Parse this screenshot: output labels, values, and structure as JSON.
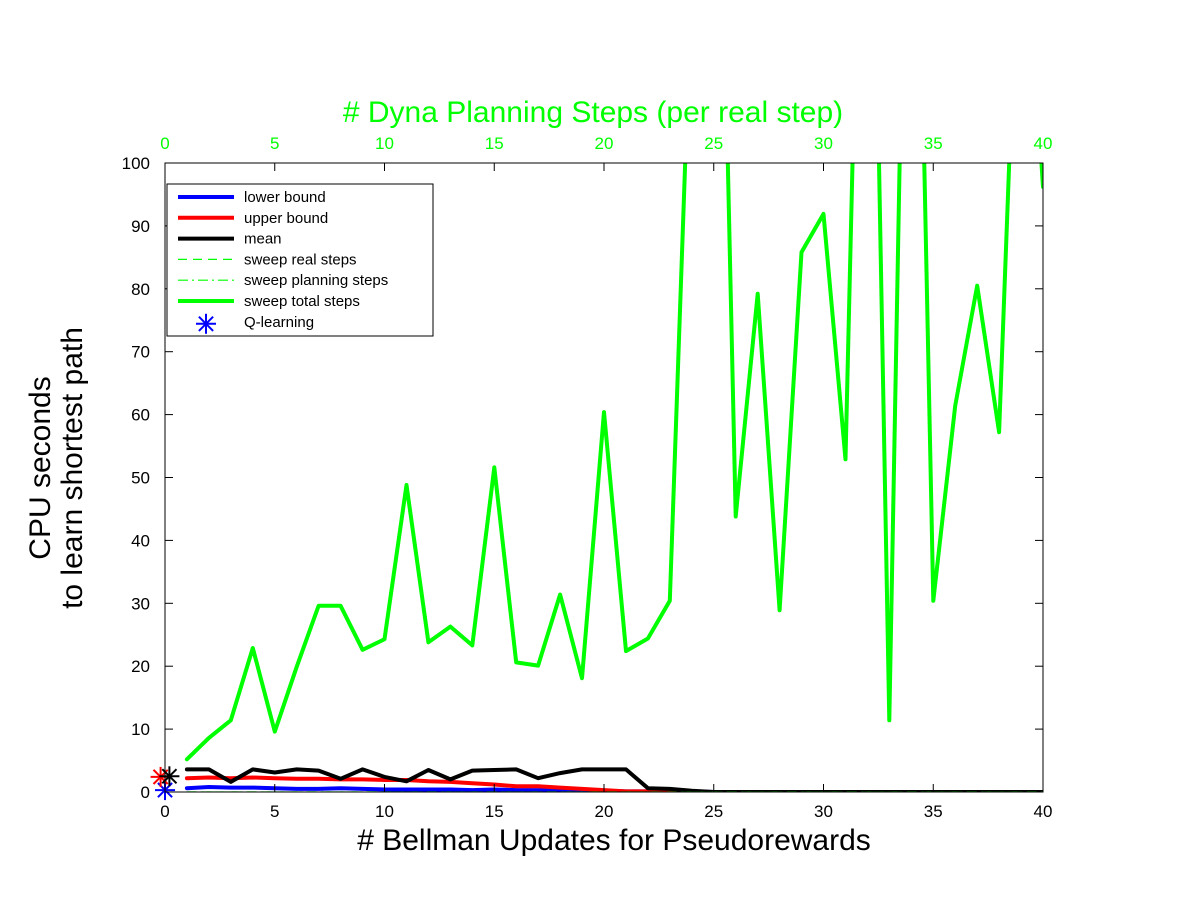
{
  "chart_data": {
    "type": "line",
    "title": "",
    "xlabel": "# Bellman Updates for Pseudorewards",
    "ylabel_lines": [
      "CPU seconds",
      "to learn shortest path"
    ],
    "top_xlabel": "# Dyna Planning Steps (per real step)",
    "xlim": [
      0,
      40
    ],
    "ylim": [
      0,
      100
    ],
    "xticks": [
      0,
      5,
      10,
      15,
      20,
      25,
      30,
      35,
      40
    ],
    "yticks": [
      0,
      10,
      20,
      30,
      40,
      50,
      60,
      70,
      80,
      90,
      100
    ],
    "top_xticks": [
      0,
      5,
      10,
      15,
      20,
      25,
      30,
      35,
      40
    ],
    "grid": false,
    "legend_position": "top-left",
    "colors": {
      "blue": "#0000ff",
      "red": "#ff0000",
      "black": "#000000",
      "green": "#00ff00",
      "top_axis": "#00ff00"
    },
    "series": [
      {
        "name": "lower bound",
        "color": "#0000ff",
        "style": "solid",
        "x": [
          1,
          2,
          3,
          4,
          5,
          6,
          7,
          8,
          9,
          10,
          11,
          12,
          13,
          14,
          15,
          16,
          17,
          18,
          19,
          20,
          21,
          22,
          23,
          24,
          25,
          26,
          27,
          28,
          29,
          30,
          31,
          32,
          33,
          34,
          35,
          36,
          37,
          38,
          39,
          40
        ],
        "y": [
          0.6,
          0.8,
          0.7,
          0.7,
          0.6,
          0.5,
          0.5,
          0.6,
          0.5,
          0.4,
          0.4,
          0.4,
          0.4,
          0.3,
          0.4,
          0.3,
          0.3,
          0.3,
          0.2,
          0.2,
          0.1,
          0.1,
          0.1,
          0.1,
          0,
          0,
          0,
          0,
          0,
          0,
          0,
          0,
          0,
          0,
          0,
          0,
          0,
          0,
          0,
          0
        ]
      },
      {
        "name": "upper bound",
        "color": "#ff0000",
        "style": "solid",
        "x": [
          1,
          2,
          3,
          4,
          5,
          6,
          7,
          8,
          9,
          10,
          11,
          12,
          13,
          14,
          15,
          16,
          17,
          18,
          19,
          20,
          21,
          22,
          23,
          24,
          25,
          26,
          27,
          28,
          29,
          30,
          31,
          32,
          33,
          34,
          35,
          36,
          37,
          38,
          39,
          40
        ],
        "y": [
          2.2,
          2.3,
          2.2,
          2.3,
          2.2,
          2.1,
          2.1,
          2.0,
          2.0,
          1.9,
          1.9,
          1.7,
          1.6,
          1.4,
          1.2,
          0.9,
          0.9,
          0.7,
          0.5,
          0.3,
          0.1,
          0.1,
          0.1,
          0,
          0,
          0,
          0,
          0,
          0,
          0,
          0,
          0,
          0,
          0,
          0,
          0,
          0,
          0,
          0,
          0
        ]
      },
      {
        "name": "mean",
        "color": "#000000",
        "style": "solid",
        "x": [
          1,
          2,
          3,
          4,
          5,
          6,
          7,
          8,
          9,
          10,
          11,
          12,
          13,
          14,
          15,
          16,
          17,
          18,
          19,
          20,
          21,
          22,
          23,
          24,
          25,
          26,
          27,
          28,
          29,
          30,
          31,
          32,
          33,
          34,
          35,
          36,
          37,
          38,
          39,
          40
        ],
        "y": [
          3.6,
          3.6,
          1.6,
          3.6,
          3.1,
          3.6,
          3.4,
          2.1,
          3.6,
          2.4,
          1.7,
          3.5,
          2.0,
          3.4,
          3.5,
          3.6,
          2.2,
          3.0,
          3.6,
          3.6,
          3.6,
          0.6,
          0.5,
          0.2,
          0,
          0,
          0,
          0,
          0,
          0,
          0,
          0,
          0,
          0,
          0,
          0,
          0,
          0,
          0,
          0
        ]
      },
      {
        "name": "sweep real steps",
        "color": "#00ff00",
        "style": "dashed",
        "x": [
          1,
          5,
          10,
          15,
          20,
          25,
          30,
          35,
          40
        ],
        "y": [
          0,
          0,
          0,
          0,
          0,
          0,
          0,
          0,
          0
        ]
      },
      {
        "name": "sweep planning steps",
        "color": "#00ff00",
        "style": "dashdot",
        "x": [
          1,
          5,
          10,
          15,
          20,
          25,
          30,
          35,
          40
        ],
        "y": [
          0,
          0,
          0,
          0,
          0,
          0,
          0,
          0,
          0
        ]
      },
      {
        "name": "sweep total steps",
        "color": "#00ff00",
        "style": "solid",
        "x": [
          1,
          2,
          3,
          4,
          5,
          6,
          7,
          8,
          9,
          10,
          11,
          12,
          13,
          14,
          15,
          16,
          17,
          18,
          19,
          20,
          21,
          22,
          23,
          24,
          25,
          26,
          27,
          28,
          29,
          30,
          31,
          32,
          33,
          34,
          35,
          36,
          37,
          38,
          39,
          40
        ],
        "y": [
          5.2,
          8.6,
          11.4,
          22.9,
          9.6,
          19.9,
          29.6,
          29.6,
          22.6,
          24.3,
          48.8,
          23.8,
          26.3,
          23.3,
          51.6,
          20.6,
          20.1,
          31.4,
          18.1,
          60.4,
          22.4,
          24.4,
          30.4,
          130,
          200,
          43.8,
          79.2,
          28.9,
          85.8,
          91.9,
          52.9,
          200,
          11.4,
          200,
          30.4,
          61.4,
          80.5,
          57.2,
          150,
          96.2
        ]
      }
    ],
    "markers": [
      {
        "name": "Q-learning",
        "color": "#0000ff",
        "x": 0,
        "y": 0.3,
        "symbol": "asterisk",
        "in_legend": true
      },
      {
        "color": "#ff0000",
        "x": -0.2,
        "y": 2.4,
        "symbol": "asterisk",
        "in_legend": false
      },
      {
        "color": "#000000",
        "x": 0.2,
        "y": 2.5,
        "symbol": "asterisk",
        "in_legend": false
      }
    ],
    "legend": [
      {
        "label": "lower bound",
        "color": "#0000ff",
        "style": "solid"
      },
      {
        "label": "upper bound",
        "color": "#ff0000",
        "style": "solid"
      },
      {
        "label": "mean",
        "color": "#000000",
        "style": "solid"
      },
      {
        "label": "sweep real steps",
        "color": "#00ff00",
        "style": "dashed"
      },
      {
        "label": "sweep planning steps",
        "color": "#00ff00",
        "style": "dashdot"
      },
      {
        "label": "sweep total steps",
        "color": "#00ff00",
        "style": "solid"
      },
      {
        "label": "Q-learning",
        "color": "#0000ff",
        "style": "marker"
      }
    ]
  }
}
